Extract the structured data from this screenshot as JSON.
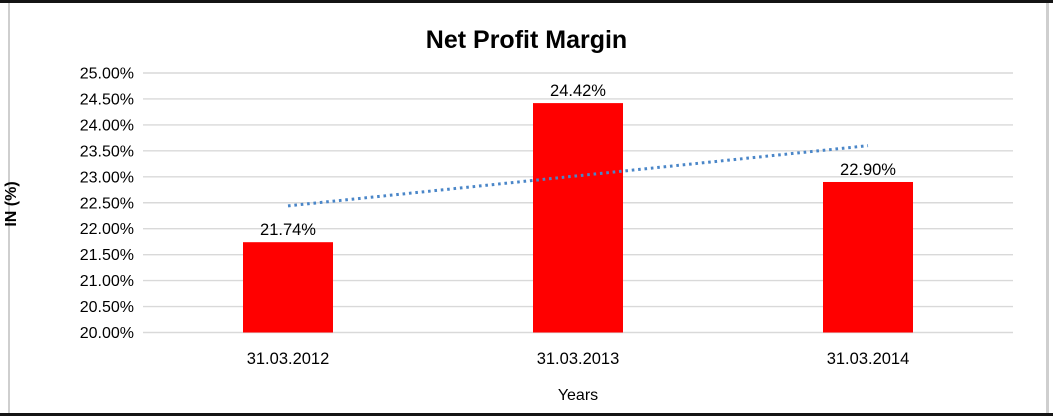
{
  "chart_data": {
    "type": "bar",
    "title": "Net Profit Margin",
    "xlabel": "Years",
    "ylabel": "IN (%)",
    "categories": [
      "31.03.2012",
      "31.03.2013",
      "31.03.2014"
    ],
    "values": [
      21.74,
      24.42,
      22.9
    ],
    "data_labels": [
      "21.74%",
      "24.42%",
      "22.90%"
    ],
    "ylim": [
      20,
      25
    ],
    "ytick_step": 0.5,
    "ytick_labels": [
      "20.00%",
      "20.50%",
      "21.00%",
      "21.50%",
      "22.00%",
      "22.50%",
      "23.00%",
      "23.50%",
      "24.00%",
      "24.50%",
      "25.00%"
    ],
    "grid": true,
    "legend": false,
    "bar_color": "#ff0000",
    "gridline_color": "#d9d9d9",
    "text_color": "#000000",
    "trendline": {
      "type": "linear",
      "style": "dotted",
      "color": "#4a86c8",
      "start_value": 22.44,
      "end_value": 23.6
    }
  }
}
